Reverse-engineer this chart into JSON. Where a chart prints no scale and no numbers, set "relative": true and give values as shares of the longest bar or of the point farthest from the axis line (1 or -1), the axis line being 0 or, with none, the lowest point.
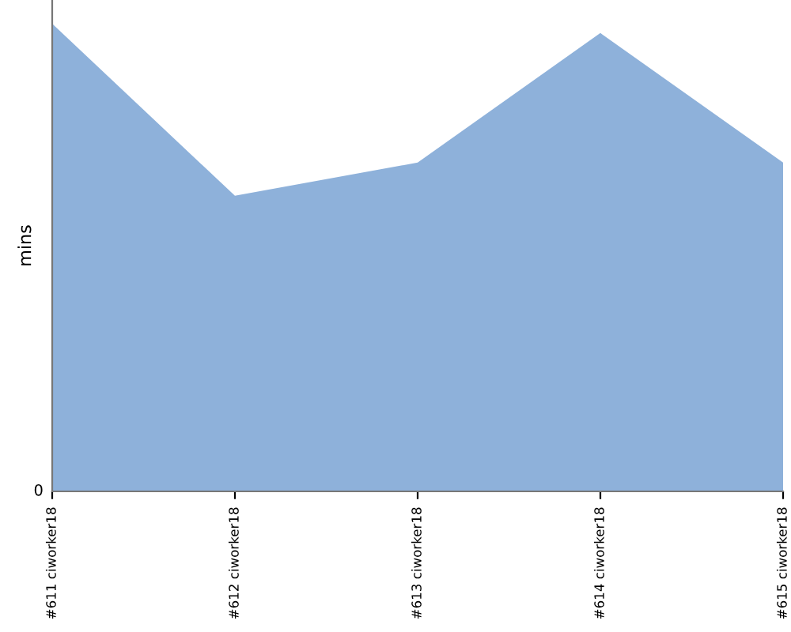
{
  "chart_data": {
    "type": "area",
    "ylabel": "mins",
    "relative": true,
    "annotations": [
      "0"
    ],
    "categories": [
      "#611 ciworker18",
      "#612 ciworker18",
      "#613 ciworker18",
      "#614 ciworker18",
      "#615 ciworker18"
    ],
    "series": [
      {
        "color": "#8eb1da",
        "values": [
          1,
          0.632,
          0.703,
          0.98,
          0.703
        ]
      }
    ],
    "grid": false,
    "legend": false
  }
}
